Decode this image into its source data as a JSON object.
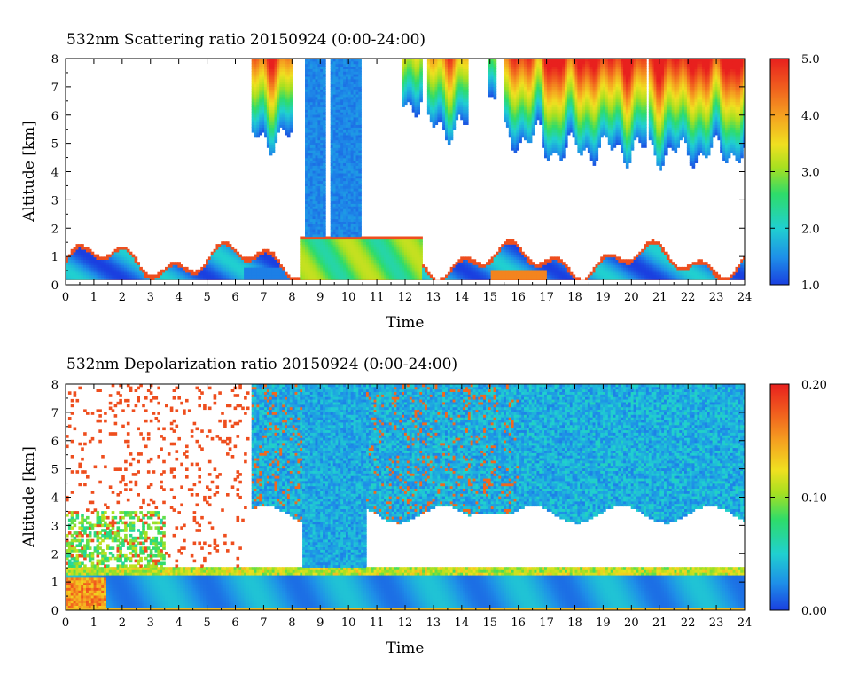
{
  "chart_data": [
    {
      "type": "heatmap",
      "title": "532nm Scattering ratio  20150924 (0:00-24:00)",
      "xlabel": "Time",
      "ylabel": "Altitude [km]",
      "xlim": [
        0,
        24
      ],
      "ylim": [
        0,
        8
      ],
      "x_ticks": [
        "0",
        "1",
        "2",
        "3",
        "4",
        "5",
        "6",
        "7",
        "8",
        "9",
        "10",
        "11",
        "12",
        "13",
        "14",
        "15",
        "16",
        "17",
        "18",
        "19",
        "20",
        "21",
        "22",
        "23",
        "24"
      ],
      "y_ticks": [
        "0",
        "1",
        "2",
        "3",
        "4",
        "5",
        "6",
        "7",
        "8"
      ],
      "colorbar": {
        "range": [
          1.0,
          5.0
        ],
        "tick_labels": [
          "1.0",
          "2.0",
          "3.0",
          "4.0",
          "5.0"
        ],
        "colormap": [
          "#1a3fe0",
          "#1e8fe8",
          "#20d0d0",
          "#2edc6a",
          "#a8e020",
          "#f0e020",
          "#f5a020",
          "#f05a1e",
          "#e8201e"
        ]
      },
      "features": [
        {
          "name": "cirrus-cloud-early",
          "time": [
            6.6,
            8.0
          ],
          "alt": [
            5.0,
            8.0
          ],
          "value": 3.5
        },
        {
          "name": "lower-cloud-column",
          "time": [
            8.5,
            10.5
          ],
          "alt": [
            0.3,
            8.0
          ],
          "value": 1.6
        },
        {
          "name": "boundary-layer-aerosol",
          "time": [
            8.2,
            12.8
          ],
          "alt": [
            0.2,
            1.7
          ],
          "value": 2.8
        },
        {
          "name": "cirrus-cloud-mid",
          "time": [
            11.9,
            14.2
          ],
          "alt": [
            4.2,
            8.0
          ],
          "value": 3.5
        },
        {
          "name": "cirrus-cloud-late",
          "time": [
            15.5,
            24.0
          ],
          "alt": [
            4.6,
            8.0
          ],
          "value": 3.8
        },
        {
          "name": "surface-aerosol-layer",
          "time": [
            0.0,
            24.0
          ],
          "alt": [
            0.2,
            1.3
          ],
          "value": 1.8
        }
      ]
    },
    {
      "type": "heatmap",
      "title": "532nm Depolarization ratio  20150924 (0:00-24:00)",
      "xlabel": "Time",
      "ylabel": "Altitude [km]",
      "xlim": [
        0,
        24
      ],
      "ylim": [
        0,
        8
      ],
      "x_ticks": [
        "0",
        "1",
        "2",
        "3",
        "4",
        "5",
        "6",
        "7",
        "8",
        "9",
        "10",
        "11",
        "12",
        "13",
        "14",
        "15",
        "16",
        "17",
        "18",
        "19",
        "20",
        "21",
        "22",
        "23",
        "24"
      ],
      "y_ticks": [
        "0",
        "1",
        "2",
        "3",
        "4",
        "5",
        "6",
        "7",
        "8"
      ],
      "colorbar": {
        "range": [
          0.0,
          0.2
        ],
        "tick_labels": [
          "0.00",
          "0.10",
          "0.20"
        ],
        "colormap": [
          "#1a3fe0",
          "#1e8fe8",
          "#20d0d0",
          "#2edc6a",
          "#a8e020",
          "#f0e020",
          "#f5a020",
          "#f05a1e",
          "#e8201e"
        ]
      },
      "features": [
        {
          "name": "cloud-ice-region",
          "time": [
            6.6,
            24.0
          ],
          "alt": [
            3.5,
            8.0
          ],
          "value": 0.04
        },
        {
          "name": "boundary-layer",
          "time": [
            0.0,
            24.0
          ],
          "alt": [
            0.0,
            1.6
          ],
          "value": 0.03
        },
        {
          "name": "near-surface-high-depol",
          "time": [
            0.0,
            1.5
          ],
          "alt": [
            0.0,
            1.0
          ],
          "value": 0.15
        },
        {
          "name": "noise-speckle-region",
          "time": [
            0.0,
            6.5
          ],
          "alt": [
            1.5,
            8.0
          ],
          "value": 0.18
        }
      ]
    }
  ]
}
